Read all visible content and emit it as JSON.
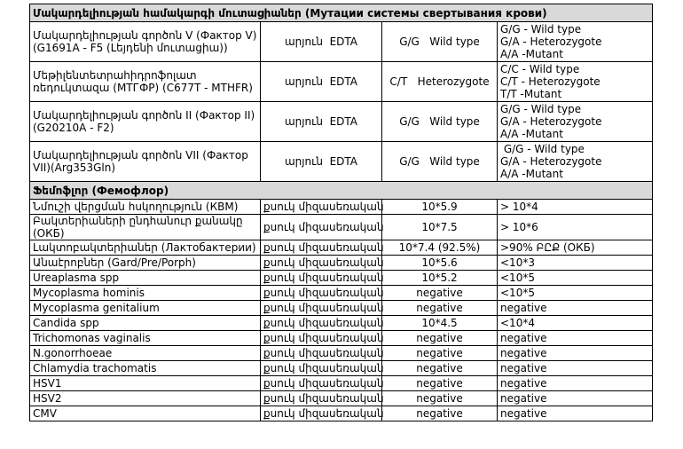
{
  "sections": [
    {
      "title": "Մակարդելիության համակարգի մուտացիաներ (Мутации системы свертывания крови)",
      "rows": [
        [
          "Մակարդելիության գործոն V (Фактор V) (G1691A - F5 (Լեյդենի մուտացիա))",
          "արյուն  EDTA",
          "G/G   Wild type",
          [
            "G/G - Wild type",
            "G/A - Heterozygote",
            "A/A -Mutant"
          ]
        ],
        [
          "Մեթիլենտետրահիդրոֆոլատ ռեդուկտազա (МТГФР) (C677T - MTHFR)",
          "արյուն  EDTA",
          "C/T   Heterozygote",
          [
            "C/C - Wild type",
            "C/T - Heterozygote",
            "T/T -Mutant"
          ]
        ],
        [
          "Մակարդելիության գործոն II (Фактор II) (G20210A - F2)",
          "արյուն  EDTA",
          "G/G   Wild type",
          [
            "G/G - Wild type",
            "G/A - Heterozygote",
            "A/A -Mutant"
          ]
        ],
        [
          "Մակարդելիության գործոն VII (Фактор VII)(Arg353Gln)",
          "արյուն  EDTA",
          "G/G   Wild type",
          [
            " G/G - Wild type",
            "G/A - Heterozygote",
            "A/A -Mutant"
          ]
        ]
      ]
    },
    {
      "title": "Ֆեմոֆլոր (Фемофлор)",
      "rows": [
        [
          "Նմուշի վերցման հսկողություն (КВМ)",
          "քսուկ միզասեռական",
          "10*5.9",
          "> 10*4"
        ],
        [
          "Բակտերիաների ընդհանուր քանակը (ОКБ)",
          "քսուկ միզասեռական",
          "10*7.5",
          "> 10*6"
        ],
        [
          "Լակտոբակտերիաներ (Лактобактерии)",
          "քսուկ միզասեռական",
          "10*7.4 (92.5%)",
          ">90% ԲԸՔ (ОКБ)"
        ],
        [
          "Անաէրոբներ (Gard/Pre/Porph)",
          "քսուկ միզասեռական",
          "10*5.6",
          "<10*3"
        ],
        [
          "Ureaplasma spp",
          "քսուկ միզասեռական",
          "10*5.2",
          "<10*5"
        ],
        [
          "Mycoplasma hominis",
          "քսուկ միզասեռական",
          "negative",
          "<10*5"
        ],
        [
          "Mycoplasma genitalium",
          "քսուկ միզասեռական",
          "negative",
          "negative"
        ],
        [
          "Candida spp",
          "քսուկ միզասեռական",
          "10*4.5",
          "<10*4"
        ],
        [
          "Trichomonas vaginalis",
          "քսուկ միզասեռական",
          "negative",
          "negative"
        ],
        [
          "N.gonorrhoeae",
          "քսուկ միզասեռական",
          "negative",
          "negative"
        ],
        [
          "Chlamydia trachomatis",
          "քսուկ միզասեռական",
          "negative",
          "negative"
        ],
        [
          "HSV1",
          "քսուկ միզասեռական",
          "negative",
          "negative"
        ],
        [
          "HSV2",
          "քսուկ միզասեռական",
          "negative",
          "negative"
        ],
        [
          "CMV",
          "քսուկ միզասեռական",
          "negative",
          "negative"
        ]
      ]
    }
  ]
}
